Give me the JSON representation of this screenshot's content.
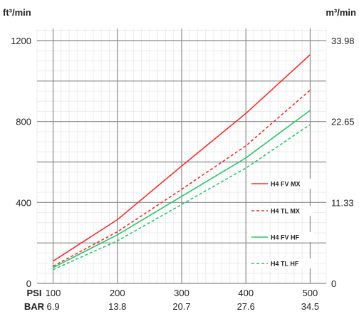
{
  "chart_data": {
    "type": "line",
    "left_unit": "ft³/min",
    "right_unit": "m³/min",
    "x": [
      100,
      200,
      300,
      400,
      500
    ],
    "x_secondary": [
      "6.9",
      "13.8",
      "20.7",
      "27.6",
      "34.5"
    ],
    "x_row_labels": {
      "primary": "PSI",
      "secondary": "BAR"
    },
    "xlim": [
      75,
      525
    ],
    "ylim": [
      0,
      1200
    ],
    "y_ticks": [
      0,
      400,
      800,
      1200
    ],
    "y_ticks_right": [
      "0",
      "11.33",
      "22.65",
      "33.98"
    ],
    "grid": true,
    "legend_position": "right-center",
    "series": [
      {
        "name": "H4 FV MX",
        "color": "#f03030",
        "dash": "solid",
        "values": [
          110,
          315,
          580,
          840,
          1130
        ]
      },
      {
        "name": "H4 TL MX",
        "color": "#f03030",
        "dash": "dashed",
        "values": [
          85,
          255,
          465,
          680,
          955
        ]
      },
      {
        "name": "H4 FV HF",
        "color": "#2ec26b",
        "dash": "solid",
        "values": [
          78,
          240,
          430,
          620,
          855
        ]
      },
      {
        "name": "H4 TL HF",
        "color": "#2ec26b",
        "dash": "dashed",
        "values": [
          68,
          210,
          390,
          570,
          785
        ]
      }
    ]
  }
}
